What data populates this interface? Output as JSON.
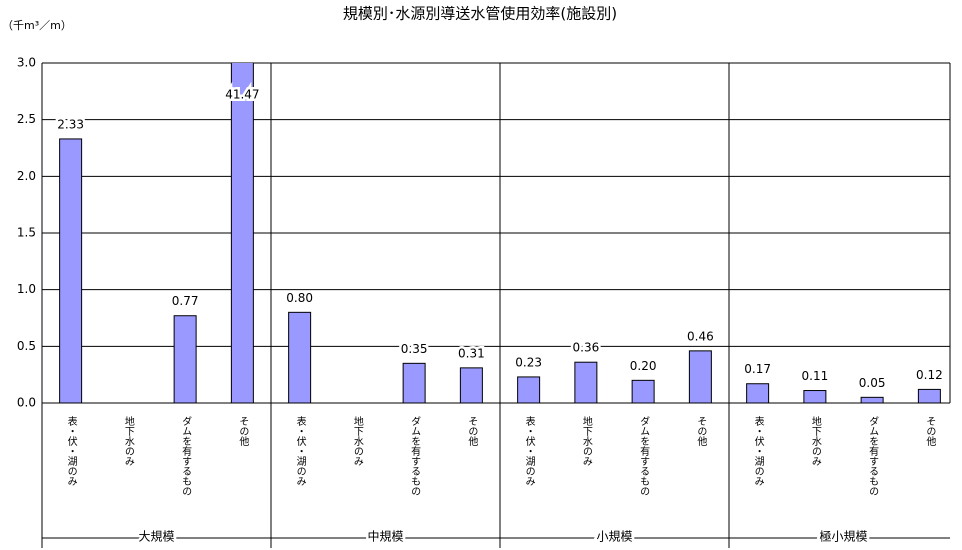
{
  "chart_data": {
    "type": "bar",
    "title": "規模別･水源別導送水管使用効率(施設別)",
    "y_axis_label": "（千m³／m）",
    "groups": [
      "大規模",
      "中規模",
      "小規模",
      "極小規模"
    ],
    "categories": [
      "表・伏・湖のみ",
      "地下水のみ",
      "ダムを有するもの",
      "その他",
      "表・伏・湖のみ",
      "地下水のみ",
      "ダムを有するもの",
      "その他",
      "表・伏・湖のみ",
      "地下水のみ",
      "ダムを有するもの",
      "その他",
      "表・伏・湖のみ",
      "地下水のみ",
      "ダムを有するもの",
      "その他"
    ],
    "values": [
      2.33,
      null,
      0.77,
      41.47,
      0.8,
      null,
      0.35,
      0.31,
      0.23,
      0.36,
      0.2,
      0.46,
      0.17,
      0.11,
      0.05,
      0.12
    ],
    "value_labels": [
      "2.33",
      null,
      "0.77",
      "41.47",
      "0.80",
      null,
      "0.35",
      "0.31",
      "0.23",
      "0.36",
      "0.20",
      "0.46",
      "0.17",
      "0.11",
      "0.05",
      "0.12"
    ],
    "color": "#9999ff",
    "ylim": [
      0,
      3
    ],
    "yticks": [
      {
        "value": 0,
        "label": "0.0"
      },
      {
        "value": 0.5,
        "label": "0.5"
      },
      {
        "value": 1,
        "label": "1.0"
      },
      {
        "value": 1.5,
        "label": "1.5"
      },
      {
        "value": 2,
        "label": "2.0"
      },
      {
        "value": 2.5,
        "label": "2.5"
      },
      {
        "value": 3,
        "label": "3.0"
      }
    ],
    "grid": true
  }
}
